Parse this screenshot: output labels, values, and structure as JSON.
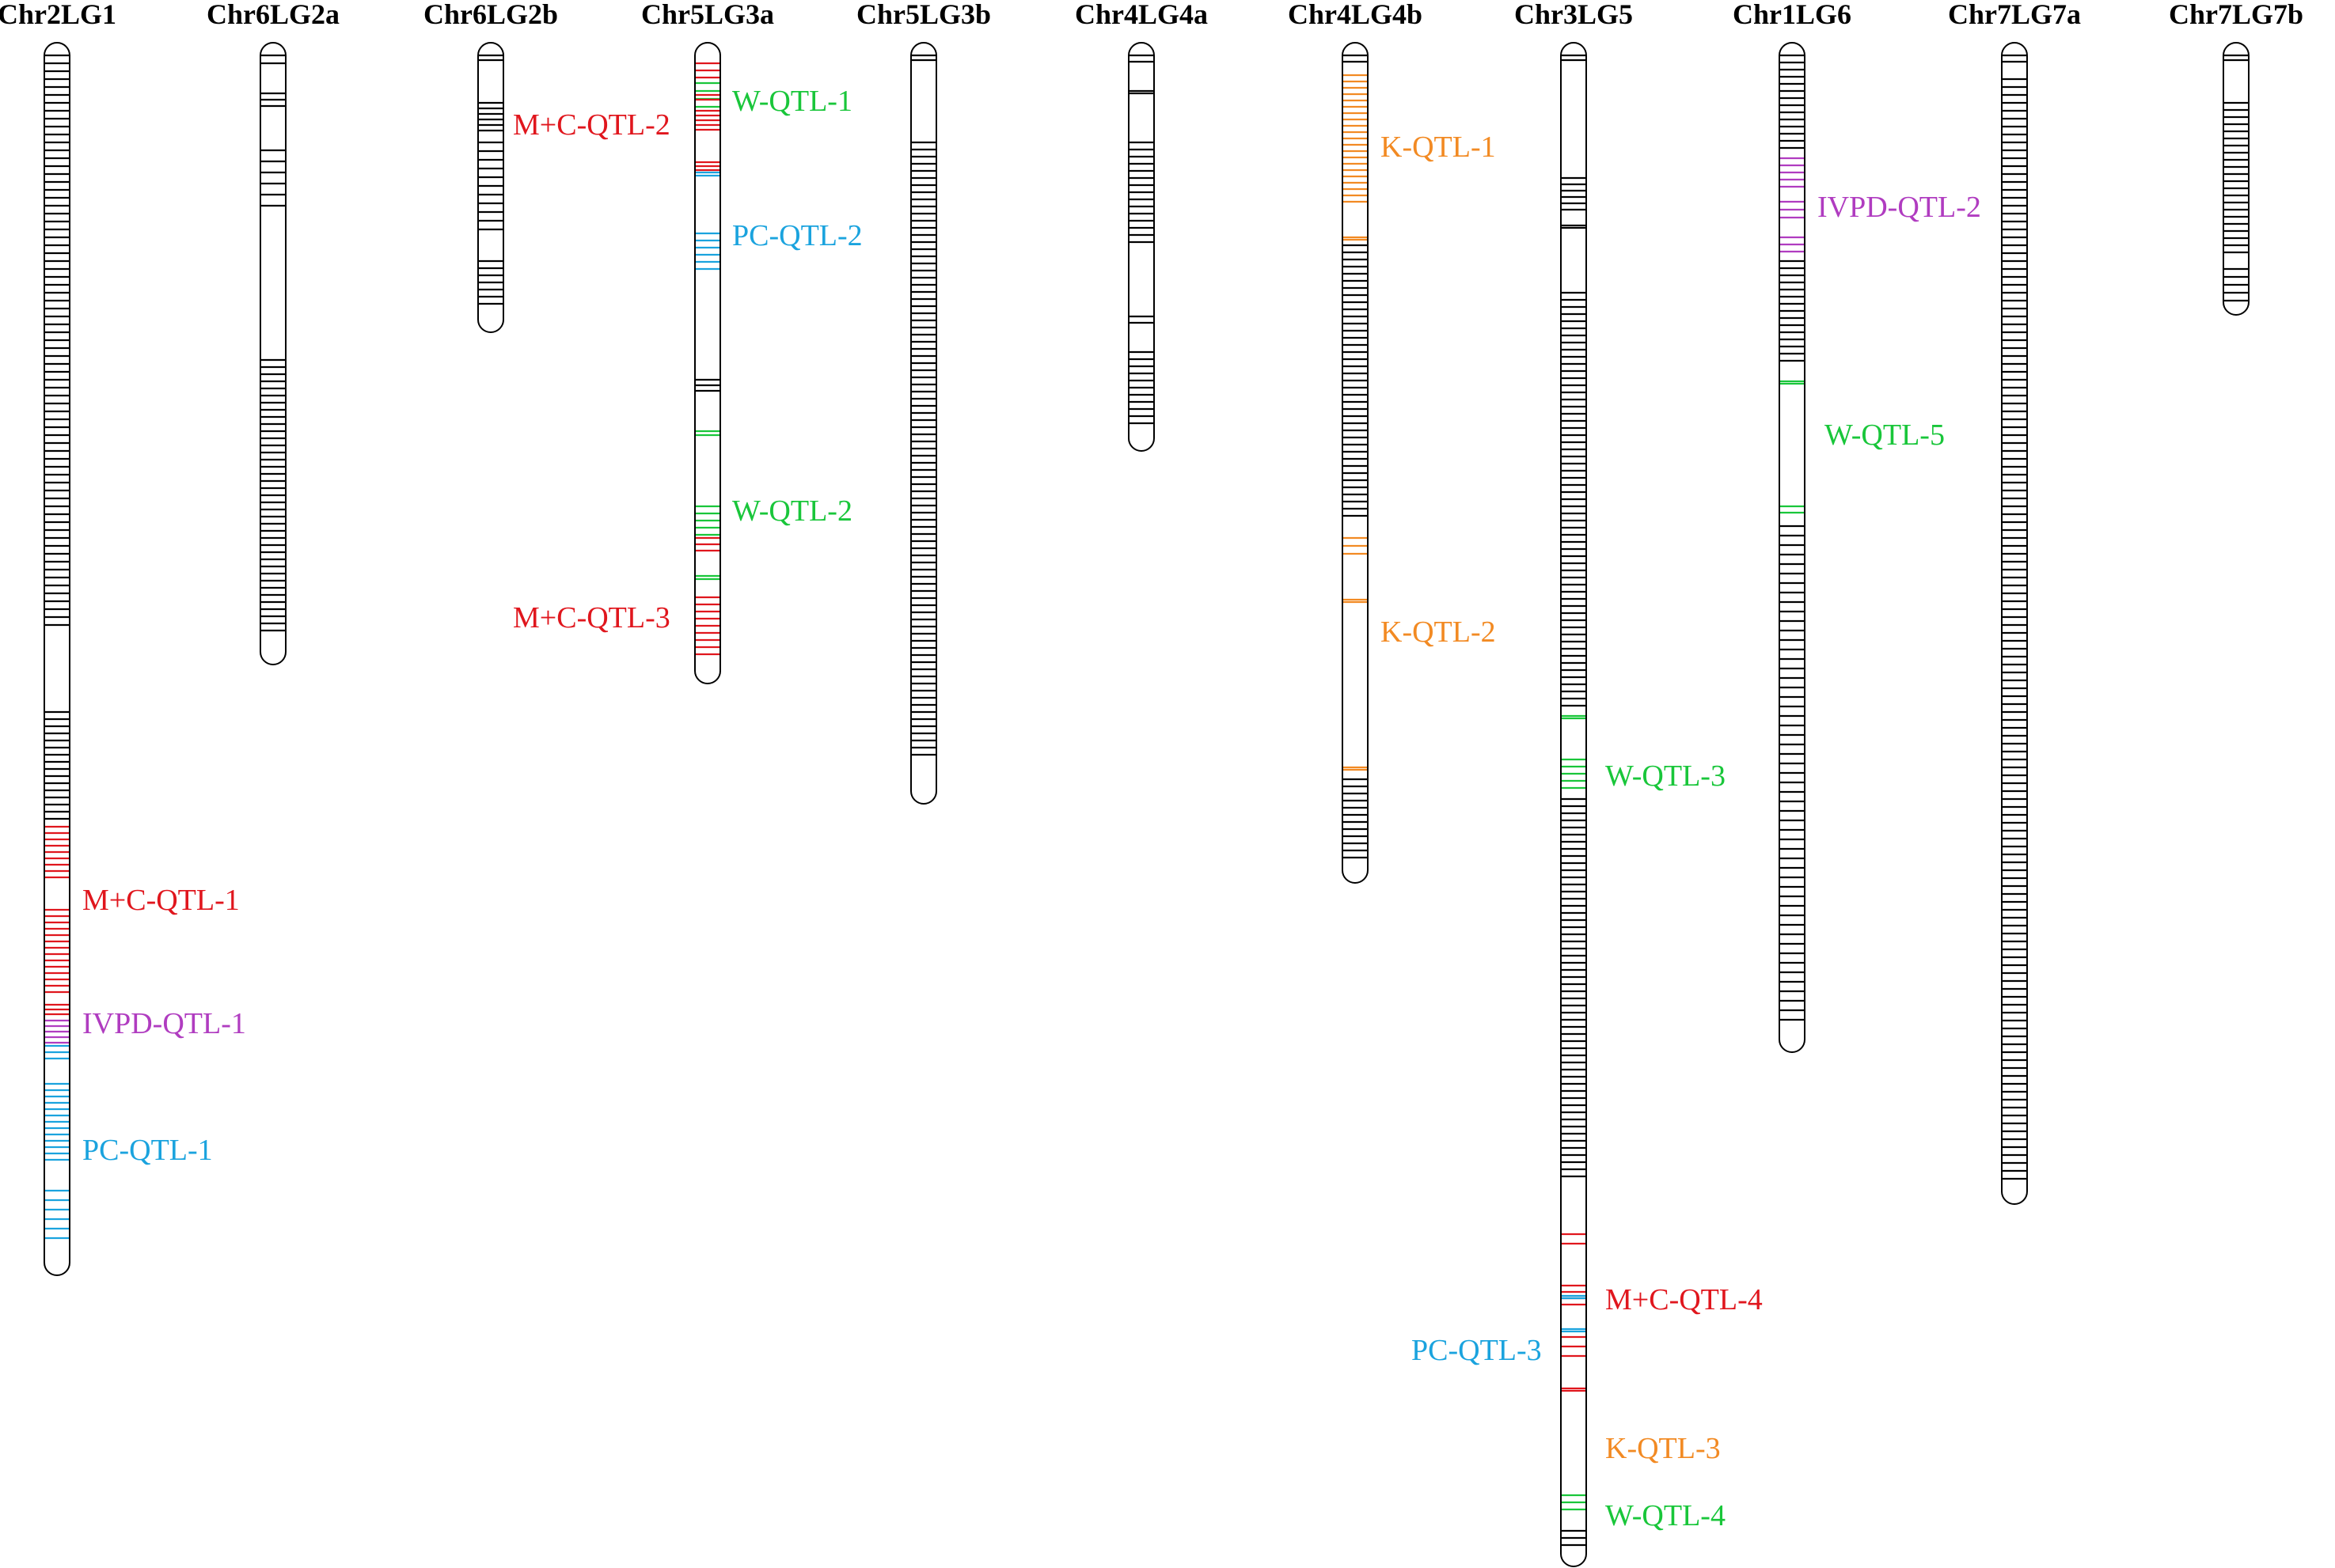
{
  "colors": {
    "marker": "#000000",
    "red": "#e0161d",
    "green": "#19c63a",
    "blue": "#1aa3de",
    "orange": "#f28a23",
    "purple": "#b03cc0",
    "outline": "#000000"
  },
  "chromosomes": [
    {
      "id": "lg1",
      "title": "Chr2LG1"
    },
    {
      "id": "lg2a",
      "title": "Chr6LG2a"
    },
    {
      "id": "lg2b",
      "title": "Chr6LG2b"
    },
    {
      "id": "lg3a",
      "title": "Chr5LG3a"
    },
    {
      "id": "lg3b",
      "title": "Chr5LG3b"
    },
    {
      "id": "lg4a",
      "title": "Chr4LG4a"
    },
    {
      "id": "lg4b",
      "title": "Chr4LG4b"
    },
    {
      "id": "lg5",
      "title": "Chr3LG5"
    },
    {
      "id": "lg6",
      "title": "Chr1LG6"
    },
    {
      "id": "lg7a",
      "title": "Chr7LG7a"
    },
    {
      "id": "lg7b",
      "title": "Chr7LG7b"
    }
  ],
  "qtls": [
    {
      "id": "mc1",
      "label": "M+C-QTL-1",
      "color": "red"
    },
    {
      "id": "ivpd1",
      "label": "IVPD-QTL-1",
      "color": "purple"
    },
    {
      "id": "pc1",
      "label": "PC-QTL-1",
      "color": "blue"
    },
    {
      "id": "mc2",
      "label": "M+C-QTL-2",
      "color": "red"
    },
    {
      "id": "w1",
      "label": "W-QTL-1",
      "color": "green"
    },
    {
      "id": "pc2",
      "label": "PC-QTL-2",
      "color": "blue"
    },
    {
      "id": "w2",
      "label": "W-QTL-2",
      "color": "green"
    },
    {
      "id": "mc3",
      "label": "M+C-QTL-3",
      "color": "red"
    },
    {
      "id": "k1",
      "label": "K-QTL-1",
      "color": "orange"
    },
    {
      "id": "k2",
      "label": "K-QTL-2",
      "color": "orange"
    },
    {
      "id": "w3",
      "label": "W-QTL-3",
      "color": "green"
    },
    {
      "id": "mc4",
      "label": "M+C-QTL-4",
      "color": "red"
    },
    {
      "id": "pc3",
      "label": "PC-QTL-3",
      "color": "blue"
    },
    {
      "id": "k3",
      "label": "K-QTL-3",
      "color": "orange"
    },
    {
      "id": "w4",
      "label": "W-QTL-4",
      "color": "green"
    },
    {
      "id": "ivpd2",
      "label": "IVPD-QTL-2",
      "color": "purple"
    },
    {
      "id": "w5",
      "label": "W-QTL-5",
      "color": "green"
    }
  ]
}
